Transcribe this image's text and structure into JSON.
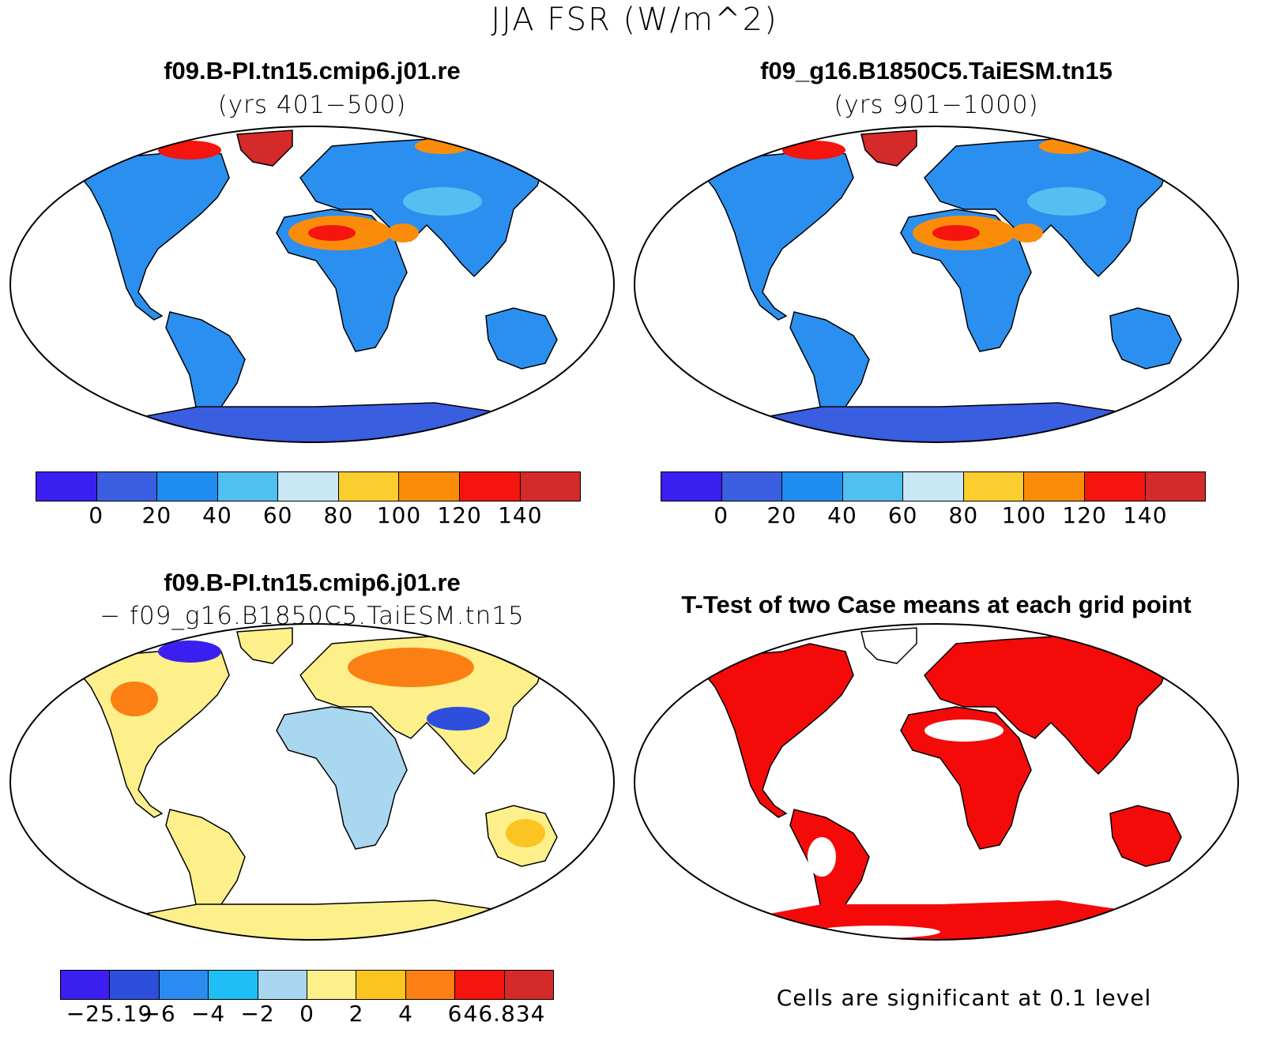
{
  "main_title": "JJA FSR (W/m^2)",
  "panels": {
    "top_left": {
      "title": "f09.B-PI.tn15.cmip6.j01.re",
      "subtitle": "(yrs 401−500)"
    },
    "top_right": {
      "title": "f09_g16.B1850C5.TaiESM.tn15",
      "subtitle": "(yrs 901−1000)"
    },
    "bottom_left": {
      "title": "f09.B-PI.tn15.cmip6.j01.re",
      "subtitle": "− f09_g16.B1850C5.TaiESM.tn15"
    },
    "bottom_right": {
      "title": "T-Test of two Case means at each grid point",
      "footnote": "Cells are significant at 0.1 level"
    }
  },
  "colorbar_top": {
    "colors": [
      "#3a1ff0",
      "#3a5ee0",
      "#1f8cef",
      "#4fc0f0",
      "#c8e8f6",
      "#fbcd2e",
      "#fb8c0a",
      "#f5140e",
      "#d42a2a"
    ],
    "ticks": [
      "0",
      "20",
      "40",
      "60",
      "80",
      "100",
      "120",
      "140"
    ]
  },
  "colorbar_diff": {
    "colors": [
      "#3a1ff0",
      "#2d4fdc",
      "#2a8cf0",
      "#1fbef5",
      "#a9d7f0",
      "#fdf08a",
      "#fbc421",
      "#fb7f12",
      "#f5140e",
      "#d42a2a"
    ],
    "ticks": [
      "−25.19",
      "−6",
      "−4",
      "−2",
      "0",
      "2",
      "4",
      "6",
      "46.834"
    ]
  },
  "map_colors": {
    "land_mean": "#2b8ff0",
    "land_light": "#55bff2",
    "antarctica": "#3a5ee0",
    "desert": "#fb8c0a",
    "desert_hot": "#f5140e",
    "greenland": "#d42a2a",
    "diff_land": "#fdf08a",
    "diff_cool": "#a9d7f0",
    "ttest": "#f50a0a"
  }
}
